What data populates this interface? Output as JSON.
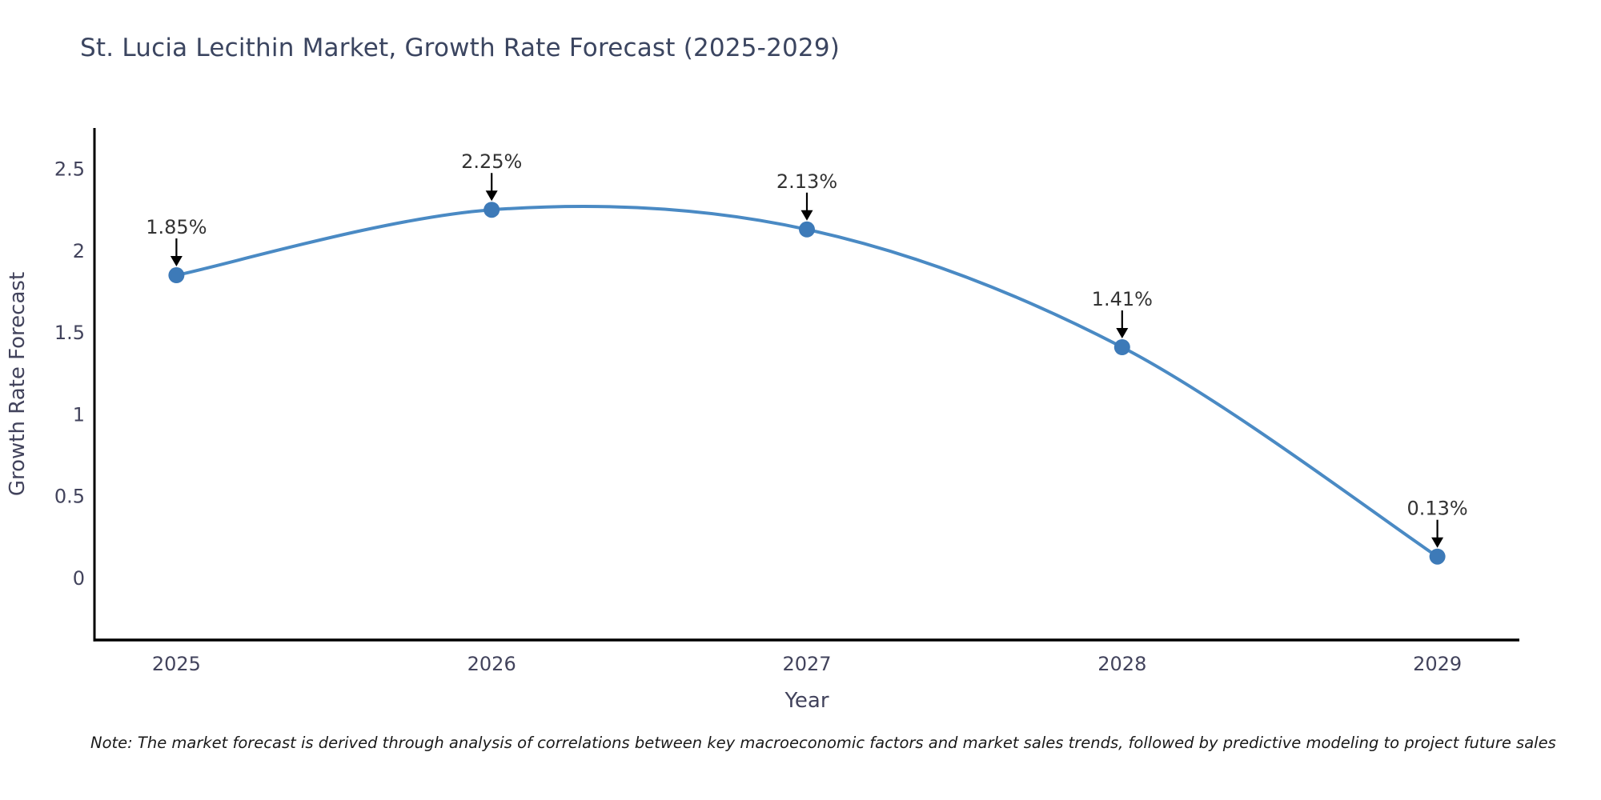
{
  "chart_data": {
    "type": "line",
    "title": "St. Lucia Lecithin Market, Growth Rate Forecast (2025-2029)",
    "xlabel": "Year",
    "ylabel": "Growth Rate Forecast",
    "x": [
      2025,
      2026,
      2027,
      2028,
      2029
    ],
    "series": [
      {
        "name": "Growth Rate Forecast",
        "values": [
          1.85,
          2.25,
          2.13,
          1.41,
          0.13
        ]
      }
    ],
    "annotations": [
      "1.85%",
      "2.25%",
      "2.13%",
      "1.41%",
      "0.13%"
    ],
    "yticks": [
      "0",
      "0.5",
      "1",
      "1.5",
      "2",
      "2.5"
    ],
    "ytick_values": [
      0,
      0.5,
      1,
      1.5,
      2,
      2.5
    ],
    "ylim": [
      -0.38,
      2.75
    ],
    "xlim": [
      2024.74,
      2029.26
    ],
    "grid": false,
    "legend_position": "none",
    "line_color": "#4a8ac4",
    "marker_color": "#3d7ab8",
    "axis_color": "#000000",
    "arrow_color": "#000000",
    "tick_label_color": "#42435c",
    "title_color": "#3b4560",
    "annotation_color": "#333333",
    "note": "Note: The market forecast is derived through analysis of correlations between key macroeconomic factors and market sales trends, followed by predictive modeling to project future sales"
  }
}
